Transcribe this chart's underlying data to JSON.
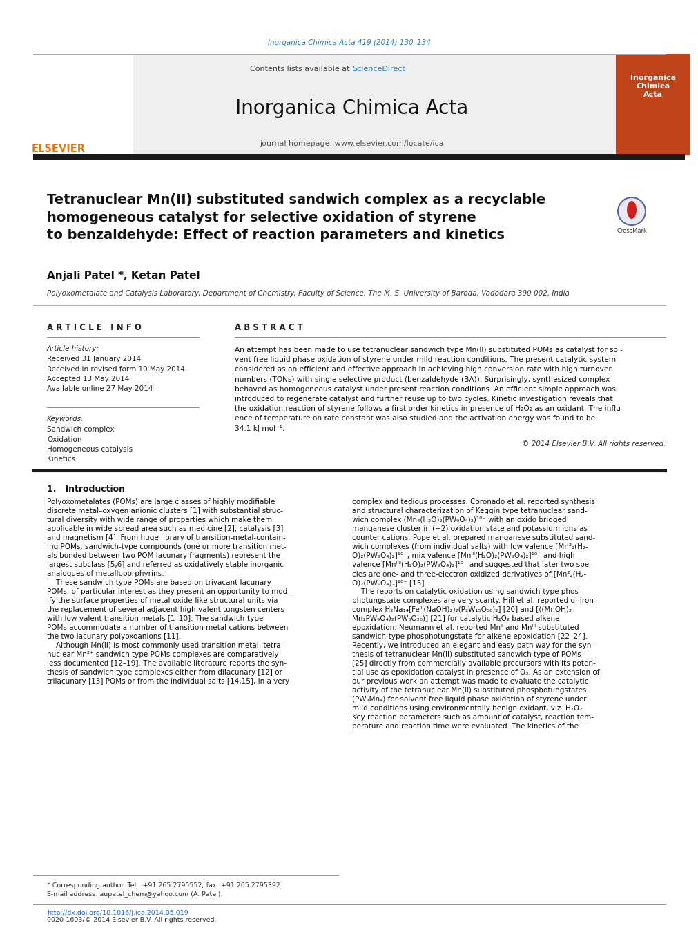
{
  "journal_ref": "Inorganica Chimica Acta 419 (2014) 130–134",
  "journal_ref_color": "#2980b9",
  "contents_text": "Contents lists available at ",
  "sciencedirect_text": "ScienceDirect",
  "sciencedirect_color": "#2980b9",
  "journal_name": "Inorganica Chimica Acta",
  "homepage_text": "journal homepage: www.elsevier.com/locate/ica",
  "title": "Tetranuclear Mn(II) substituted sandwich complex as a recyclable\nhomogeneous catalyst for selective oxidation of styrene\nto benzaldehyde: Effect of reaction parameters and kinetics",
  "authors": "Anjali Patel *, Ketan Patel",
  "affiliation": "Polyoxometalate and Catalysis Laboratory, Department of Chemistry, Faculty of Science, The M. S. University of Baroda, Vadodara 390 002, India",
  "article_info_header": "A R T I C L E   I N F O",
  "abstract_header": "A B S T R A C T",
  "article_history_label": "Article history:",
  "received": "Received 31 January 2014",
  "received_revised": "Received in revised form 10 May 2014",
  "accepted": "Accepted 13 May 2014",
  "available": "Available online 27 May 2014",
  "keywords_label": "Keywords:",
  "keywords": [
    "Sandwich complex",
    "Oxidation",
    "Homogeneous catalysis",
    "Kinetics"
  ],
  "abstract_text": "An attempt has been made to use tetranuclear sandwich type Mn(II) substituted POMs as catalyst for sol-\nvent free liquid phase oxidation of styrene under mild reaction conditions. The present catalytic system\nconsidered as an efficient and effective approach in achieving high conversion rate with high turnover\nnumbers (TONs) with single selective product (benzaldehyde (BA)). Surprisingly, synthesized complex\nbehaved as homogeneous catalyst under present reaction conditions. An efficient simple approach was\nintroduced to regenerate catalyst and further reuse up to two cycles. Kinetic investigation reveals that\nthe oxidation reaction of styrene follows a first order kinetics in presence of H₂O₂ as an oxidant. The influ-\nence of temperature on rate constant was also studied and the activation energy was found to be\n34.1 kJ mol⁻¹.",
  "copyright": "© 2014 Elsevier B.V. All rights reserved.",
  "intro_header": "1.   Introduction",
  "col1_lines": [
    "Polyoxometalates (POMs) are large classes of highly modifiable",
    "discrete metal–oxygen anionic clusters [1] with substantial struc-",
    "tural diversity with wide range of properties which make them",
    "applicable in wide spread area such as medicine [2], catalysis [3]",
    "and magnetism [4]. From huge library of transition-metal-contain-",
    "ing POMs, sandwich-type compounds (one or more transition met-",
    "als bonded between two POM lacunary fragments) represent the",
    "largest subclass [5,6] and referred as oxidatively stable inorganic",
    "analogues of metalloporphyrins.",
    "    These sandwich type POMs are based on trivacant lacunary",
    "POMs, of particular interest as they present an opportunity to mod-",
    "ify the surface properties of metal-oxide-like structural units via",
    "the replacement of several adjacent high-valent tungsten centers",
    "with low-valent transition metals [1–10]. The sandwich-type",
    "POMs accommodate a number of transition metal cations between",
    "the two lacunary polyoxoanions [11].",
    "    Although Mn(II) is most commonly used transition metal, tetra-",
    "nuclear Mn²⁺ sandwich type POMs complexes are comparatively",
    "less documented [12–19]. The available literature reports the syn-",
    "thesis of sandwich type complexes either from dilacunary [12] or",
    "trilacunary [13] POMs or from the individual salts [14,15], in a very"
  ],
  "col2_lines": [
    "complex and tedious processes. Coronado et al. reported synthesis",
    "and structural characterization of Keggin type tetranuclear sand-",
    "wich complex (Mn₄(H₂O)₂(PW₉O₄)₂)¹⁰⁻ with an oxido bridged",
    "manganese cluster in (+2) oxidation state and potassium ions as",
    "counter cations. Pope et al. prepared manganese substituted sand-",
    "wich complexes (from individual salts) with low valence [Mn²₂(H₂-",
    "O)₂(PW₉O₄)₂]¹⁰⁻, mix valence [Mnᴵᴵᴵ(H₂O)₂(PW₉O₄)₂]¹⁰⁻ and high",
    "valence [Mnᴵᴵᴵᴵ(H₂O)₂(PW₉O₄)₂]¹⁰⁻ and suggested that later two spe-",
    "cies are one- and three-electron oxidized derivatives of [Mn²₂(H₂-",
    "O)₂(PW₉O₄)₂]¹⁰⁻ [15].",
    "    The reports on catalytic oxidation using sandwich-type phos-",
    "photungstate complexes are very scanty. Hill et al. reported di-iron",
    "complex H₂Na₁₄[Feᴵᴵᴵ(NaOH)₂)₂(P₂W₁₅O₅₆)₂] [20] and [((MnOH)₂-",
    "Mn₂PW₉O₄)₂(PW₆O₂₆)] [21] for catalytic H₂O₂ based alkene",
    "epoxidation. Neumann et al. reported Mnᴵᴵ and Mnᴵᴵᴵ substituted",
    "sandwich-type phosphotungstate for alkene epoxidation [22–24].",
    "Recently, we introduced an elegant and easy path way for the syn-",
    "thesis of tetranuclear Mn(II) substituted sandwich type of POMs",
    "[25] directly from commercially available precursors with its poten-",
    "tial use as epoxidation catalyst in presence of O₃. As an extension of",
    "our previous work an attempt was made to evaluate the catalytic",
    "activity of the tetranuclear Mn(II) substituted phosphotungstates",
    "(PW₉Mn₄) for solvent free liquid phase oxidation of styrene under",
    "mild conditions using environmentally benign oxidant, viz. H₂O₂.",
    "Key reaction parameters such as amount of catalyst, reaction tem-",
    "perature and reaction time were evaluated. The kinetics of the"
  ],
  "footer_doi": "http://dx.doi.org/10.1016/j.ica.2014.05.019",
  "footer_issn": "0020-1693/© 2014 Elsevier B.V. All rights reserved.",
  "corresponding_note": "* Corresponding author. Tel.: +91 265 2795552; fax: +91 265 2795392.",
  "email_note": "E-mail address: aupatel_chem@yahoo.com (A. Patel).",
  "elsevier_color": "#E8720C",
  "thick_bar_color": "#1a1a1a",
  "background_color": "#ffffff"
}
